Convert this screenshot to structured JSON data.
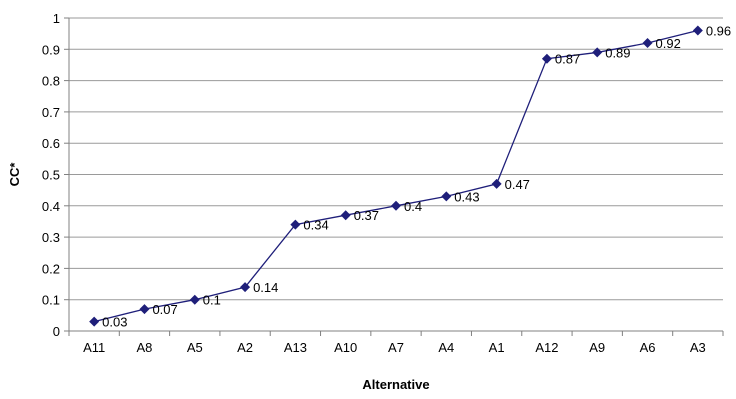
{
  "chart_data": {
    "type": "line",
    "title": "",
    "xlabel": "Alternative",
    "ylabel": "CC*",
    "categories": [
      "A11",
      "A8",
      "A5",
      "A2",
      "A13",
      "A10",
      "A7",
      "A4",
      "A1",
      "A12",
      "A9",
      "A6",
      "A3"
    ],
    "series": [
      {
        "values": [
          0.03,
          0.07,
          0.1,
          0.14,
          0.34,
          0.37,
          0.4,
          0.43,
          0.47,
          0.87,
          0.89,
          0.92,
          0.96
        ],
        "labels": [
          "0.03",
          "0.07",
          "0.1",
          "0.14",
          "0.34",
          "0.37",
          "0.4",
          "0.43",
          "0.47",
          "0.87",
          "0.89",
          "0.92",
          "0.96"
        ],
        "color": "#1F1F7A",
        "marker": "diamond"
      }
    ],
    "ylim": [
      0,
      1
    ],
    "yticks": [
      "0",
      "0.1",
      "0.2",
      "0.3",
      "0.4",
      "0.5",
      "0.6",
      "0.7",
      "0.8",
      "0.9",
      "1"
    ],
    "grid": true,
    "legend": "none"
  }
}
